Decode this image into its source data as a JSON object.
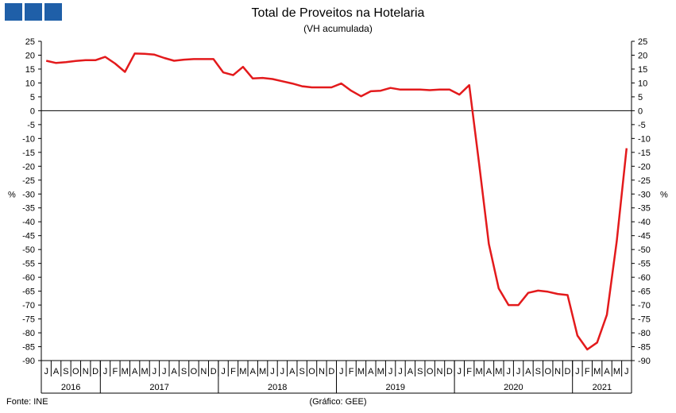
{
  "header": {
    "title": "Total de Proveitos na Hotelaria",
    "subtitle": "(VH acumulada)"
  },
  "footer": {
    "source": "Fonte: INE",
    "credit": "(Gráfico: GEE)"
  },
  "colors": {
    "series": "#e31a1c",
    "logo": "#1f5fa8"
  },
  "chart_data": {
    "type": "line",
    "title": "Total de Proveitos na Hotelaria",
    "subtitle": "(VH acumulada)",
    "ylabel": "%",
    "ylabel_right": "%",
    "ylim": [
      -90,
      25
    ],
    "yticks": [
      25,
      20,
      15,
      10,
      5,
      0,
      -5,
      -10,
      -15,
      -20,
      -25,
      -30,
      -35,
      -40,
      -45,
      -50,
      -55,
      -60,
      -65,
      -70,
      -75,
      -80,
      -85,
      -90
    ],
    "grid": false,
    "legend": "none",
    "month_labels": [
      "J",
      "A",
      "S",
      "O",
      "N",
      "D",
      "J",
      "F",
      "M",
      "A",
      "M",
      "J",
      "J",
      "A",
      "S",
      "O",
      "N",
      "D",
      "J",
      "F",
      "M",
      "A",
      "M",
      "J",
      "J",
      "A",
      "S",
      "O",
      "N",
      "D",
      "J",
      "F",
      "M",
      "A",
      "M",
      "J",
      "J",
      "A",
      "S",
      "O",
      "N",
      "D",
      "J",
      "F",
      "M",
      "A",
      "M",
      "J",
      "J",
      "A",
      "S",
      "O",
      "N",
      "D",
      "J",
      "F",
      "M",
      "A",
      "M",
      "J"
    ],
    "years": [
      {
        "label": "2016",
        "months": 6
      },
      {
        "label": "2017",
        "months": 12
      },
      {
        "label": "2018",
        "months": 12
      },
      {
        "label": "2019",
        "months": 12
      },
      {
        "label": "2020",
        "months": 12
      },
      {
        "label": "2021",
        "months": 6
      }
    ],
    "values": [
      18.0,
      17.2,
      17.5,
      17.9,
      18.2,
      18.2,
      19.4,
      17.0,
      14.0,
      20.6,
      20.5,
      20.2,
      19.0,
      18.0,
      18.4,
      18.6,
      18.6,
      18.6,
      13.8,
      12.8,
      15.8,
      11.6,
      11.8,
      11.4,
      10.6,
      9.8,
      8.8,
      8.4,
      8.4,
      8.4,
      9.8,
      7.2,
      5.2,
      7.0,
      7.2,
      8.2,
      7.6,
      7.6,
      7.6,
      7.4,
      7.6,
      7.6,
      5.8,
      9.2,
      -19.0,
      -48.0,
      -64.0,
      -70.0,
      -70.0,
      -65.6,
      -64.8,
      -65.2,
      -66.0,
      -66.4,
      -81.0,
      -86.0,
      -83.5,
      -73.5,
      -47.0,
      -13.5
    ]
  }
}
